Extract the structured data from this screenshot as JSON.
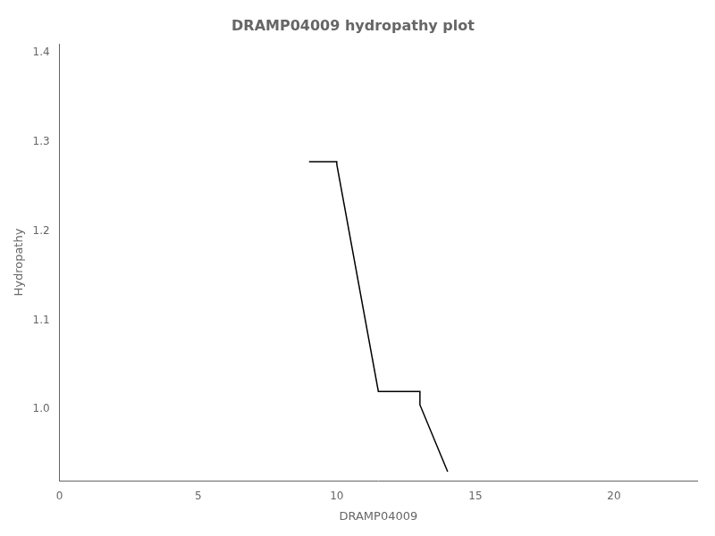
{
  "chart_data": {
    "type": "line",
    "title": "DRAMP04009 hydropathy plot",
    "xlabel": "DRAMP04009",
    "ylabel": "Hydropathy",
    "x": [
      9.0,
      10.0,
      10.0,
      11.5,
      11.5,
      13.0,
      13.0,
      14.0
    ],
    "values": [
      1.278,
      1.278,
      1.275,
      1.02,
      1.02,
      1.02,
      1.005,
      0.93
    ],
    "color": "#000000",
    "xlim": [
      0,
      23
    ],
    "ylim": [
      0.92,
      1.41
    ],
    "xticks": [
      0,
      5,
      10,
      15,
      20
    ],
    "yticks": [
      {
        "value": 1.0,
        "label": "1.0"
      },
      1.1,
      1.2,
      1.3,
      1.4
    ],
    "grid": false
  }
}
